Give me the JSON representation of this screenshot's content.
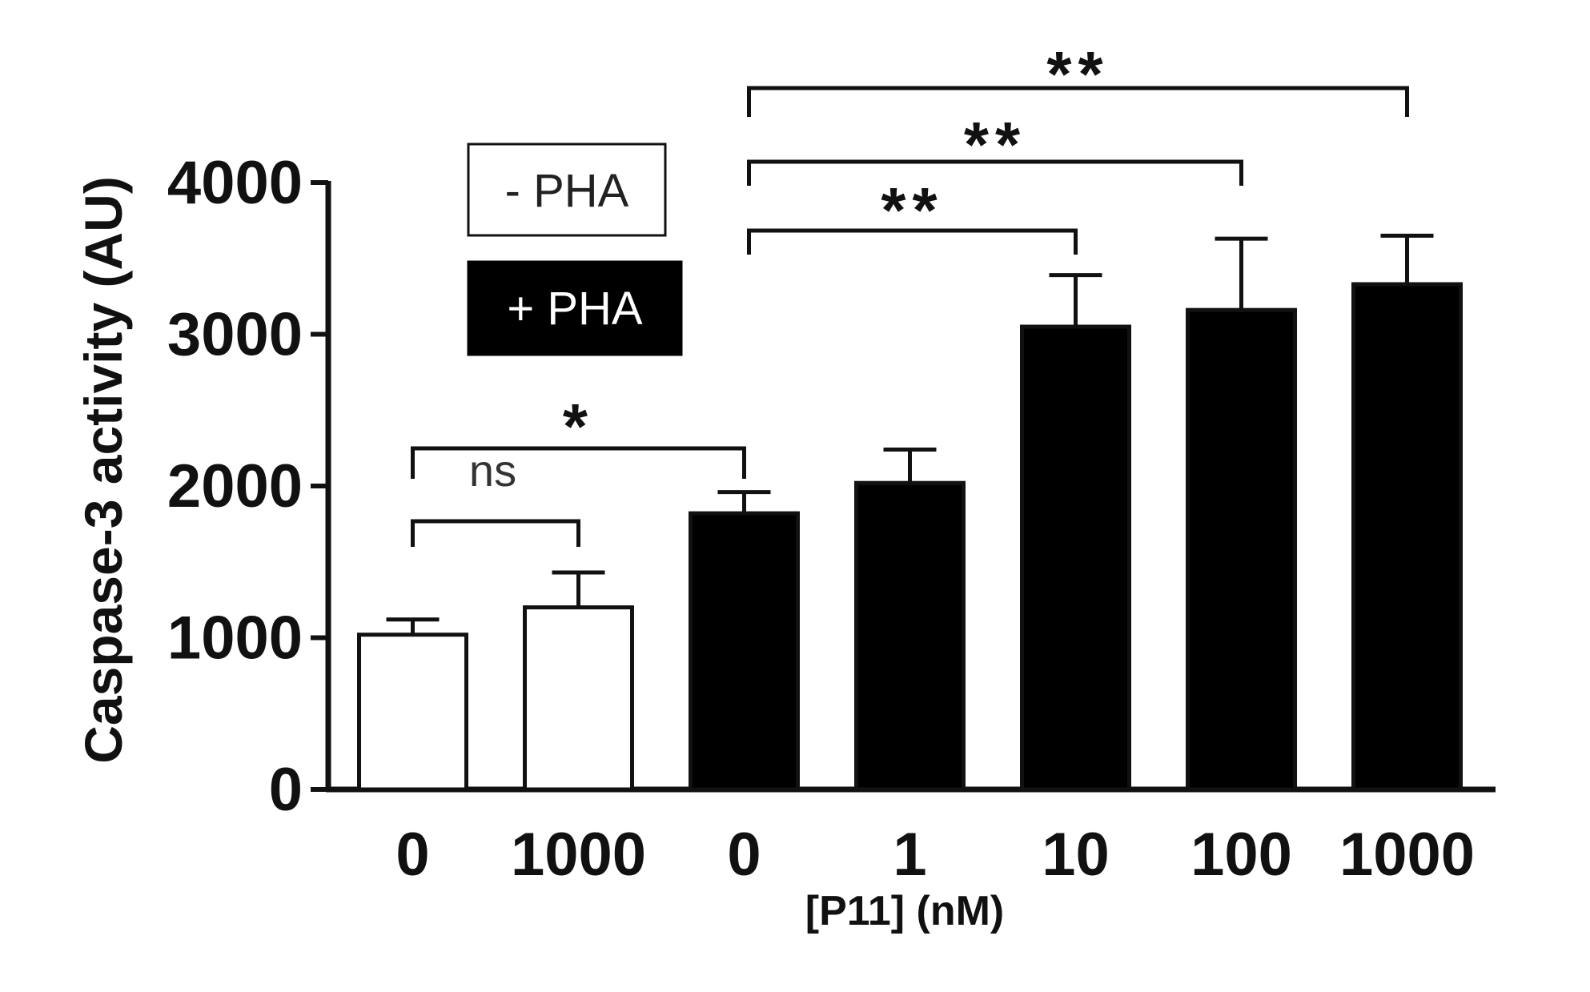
{
  "colors": {
    "axis": "#111111",
    "bar_fill_minus": "#ffffff",
    "bar_fill_plus": "#000000",
    "bar_stroke": "#111111",
    "text": "#111111"
  },
  "legend": {
    "minus_label": "- PHA",
    "plus_label": "+ PHA"
  },
  "chart_data": {
    "type": "bar",
    "title": "",
    "xlabel": "[P11] (nM)",
    "ylabel": "Caspase-3 activity (AU)",
    "ylim": [
      0,
      4000
    ],
    "yticks": [
      0,
      1000,
      2000,
      3000,
      4000
    ],
    "ytick_labels": [
      "0",
      "1000",
      "2000",
      "3000",
      "4000"
    ],
    "categories": [
      "0",
      "1000",
      "0",
      "1",
      "10",
      "100",
      "1000"
    ],
    "groups": [
      "- PHA",
      "- PHA",
      "+ PHA",
      "+ PHA",
      "+ PHA",
      "+ PHA",
      "+ PHA"
    ],
    "values": [
      1020,
      1200,
      1820,
      2020,
      3050,
      3160,
      3330
    ],
    "errors": [
      100,
      230,
      140,
      220,
      340,
      470,
      320
    ],
    "grid": false,
    "legend_position": "top-left",
    "significance": [
      {
        "from": 0,
        "to": 1,
        "label": "ns"
      },
      {
        "from": 0,
        "to": 2,
        "label": "*"
      },
      {
        "from": 2,
        "to": 4,
        "label": "**"
      },
      {
        "from": 2,
        "to": 5,
        "label": "**"
      },
      {
        "from": 2,
        "to": 6,
        "label": "**"
      }
    ]
  }
}
